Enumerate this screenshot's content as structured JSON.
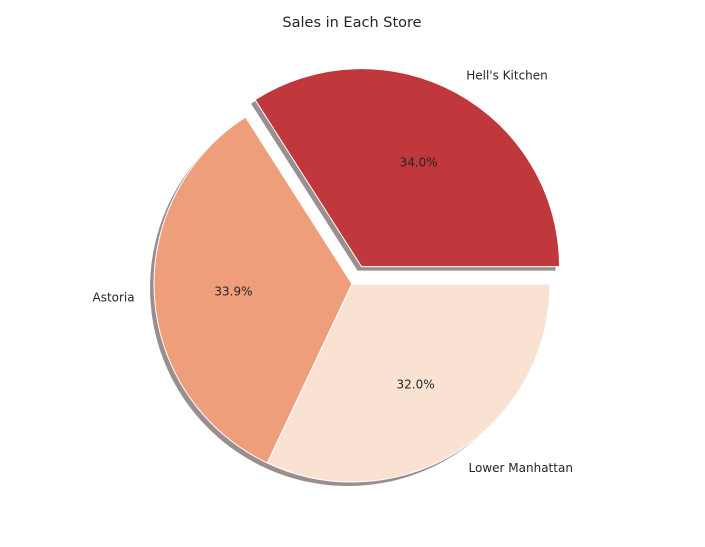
{
  "chart_data": {
    "type": "pie",
    "title": "Sales in Each Store",
    "slices": [
      {
        "label": "Hell's Kitchen",
        "value": 34.0,
        "pct_label": "34.0%",
        "color": "#c0373c",
        "explode": true
      },
      {
        "label": "Astoria",
        "value": 33.9,
        "pct_label": "33.9%",
        "color": "#ef9e7c",
        "explode": false
      },
      {
        "label": "Lower Manhattan",
        "value": 32.0,
        "pct_label": "32.0%",
        "color": "#fae2d3",
        "explode": false
      }
    ],
    "shadow": true,
    "wedge_edge_color": "#ffffff",
    "shadow_color": "#9a8e8e"
  }
}
